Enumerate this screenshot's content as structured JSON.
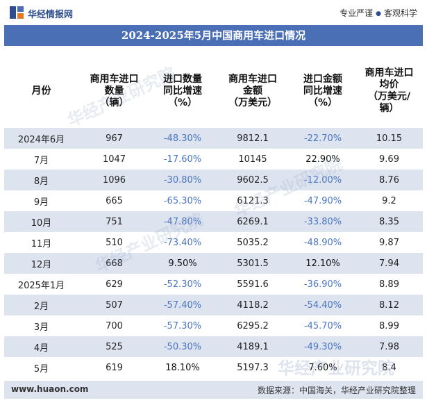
{
  "header": {
    "brand": "华经情报网",
    "slogan_left": "专业严谨",
    "slogan_right": "客观科学"
  },
  "title": "2024-2025年5月中国商用车进口情况",
  "columns": [
    "月份",
    "商用车进口数量（辆）",
    "进口数量同比增速（%）",
    "商用车进口金额（万美元）",
    "进口金额同比增速（%）",
    "商用车进口均价（万美元/辆）"
  ],
  "rows": [
    {
      "month": "2024年6月",
      "qty": "967",
      "qty_yoy": "-48.30%",
      "amount": "9812.1",
      "amount_yoy": "-22.70%",
      "price": "10.15"
    },
    {
      "month": "7月",
      "qty": "1047",
      "qty_yoy": "-17.60%",
      "amount": "10145",
      "amount_yoy": "22.90%",
      "price": "9.69"
    },
    {
      "month": "8月",
      "qty": "1096",
      "qty_yoy": "-30.80%",
      "amount": "9602.5",
      "amount_yoy": "-12.00%",
      "price": "8.76"
    },
    {
      "month": "9月",
      "qty": "665",
      "qty_yoy": "-65.30%",
      "amount": "6121.3",
      "amount_yoy": "-47.90%",
      "price": "9.2"
    },
    {
      "month": "10月",
      "qty": "751",
      "qty_yoy": "-47.80%",
      "amount": "6269.1",
      "amount_yoy": "-33.80%",
      "price": "8.35"
    },
    {
      "month": "11月",
      "qty": "510",
      "qty_yoy": "-73.40%",
      "amount": "5035.2",
      "amount_yoy": "-48.90%",
      "price": "9.87"
    },
    {
      "month": "12月",
      "qty": "668",
      "qty_yoy": "9.50%",
      "amount": "5301.5",
      "amount_yoy": "12.10%",
      "price": "7.94"
    },
    {
      "month": "2025年1月",
      "qty": "629",
      "qty_yoy": "-52.30%",
      "amount": "5591.6",
      "amount_yoy": "-36.90%",
      "price": "8.89"
    },
    {
      "month": "2月",
      "qty": "507",
      "qty_yoy": "-57.40%",
      "amount": "4118.2",
      "amount_yoy": "-54.40%",
      "price": "8.12"
    },
    {
      "month": "3月",
      "qty": "700",
      "qty_yoy": "-57.30%",
      "amount": "6295.2",
      "amount_yoy": "-45.70%",
      "price": "8.99"
    },
    {
      "month": "4月",
      "qty": "525",
      "qty_yoy": "-50.30%",
      "amount": "4189.1",
      "amount_yoy": "-49.30%",
      "price": "7.98"
    },
    {
      "month": "5月",
      "qty": "619",
      "qty_yoy": "18.10%",
      "amount": "5197.3",
      "amount_yoy": "7.60%",
      "price": "8.4"
    }
  ],
  "watermark": "华经产业研究院",
  "footer": {
    "site": "www.huaon.com",
    "source": "数据来源：中国海关，华经产业研究院整理"
  },
  "colors": {
    "title_bg": "#4b6fb5",
    "stripe": "#dde3ef",
    "negative": "#4a76c2"
  }
}
